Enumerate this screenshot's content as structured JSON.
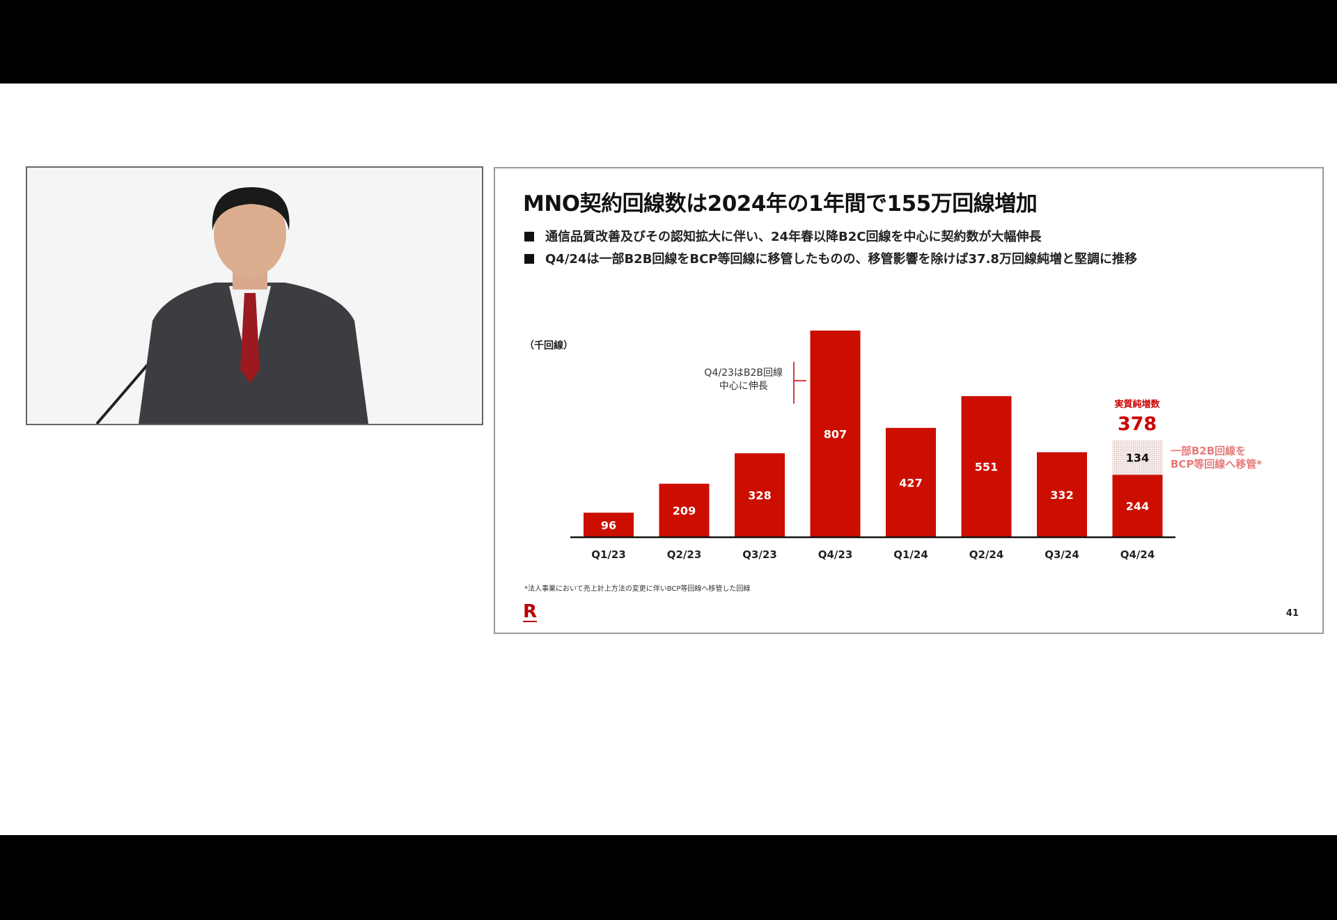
{
  "slide": {
    "title": "MNO契約回線数は2024年の1年間で155万回線増加",
    "bullets": [
      "通信品質改善及びその認知拡大に伴い、24年春以降B2C回線を中心に契約数が大幅伸長",
      "Q4/24は一部B2B回線をBCP等回線に移管したものの、移管影響を除けば37.8万回線純増と堅調に推移"
    ],
    "annotation_lines": [
      "Q4/23はB2B回線",
      "中心に伸長"
    ],
    "net_increase_label": "実質純増数",
    "net_increase_value": "378",
    "transfer_note_lines": [
      "一部B2B回線を",
      "BCP等回線へ移管*"
    ],
    "footnote": "*法人事業において売上計上方法の変更に伴いBCP等回線へ移管した回線",
    "logo": "R",
    "page_number": "41"
  },
  "chart_data": {
    "type": "bar",
    "ylabel": "（千回線）",
    "categories": [
      "Q1/23",
      "Q2/23",
      "Q3/23",
      "Q4/23",
      "Q1/24",
      "Q2/24",
      "Q3/24",
      "Q4/24"
    ],
    "values": [
      96,
      209,
      328,
      807,
      427,
      551,
      332,
      244
    ],
    "stacked_extra": {
      "category": "Q4/24",
      "value": 134
    },
    "ylim": [
      0,
      820
    ],
    "grid": false,
    "colors": {
      "bar": "#cc0e00",
      "extra": "#e9d6d6",
      "accent_text": "#cc0000",
      "note_text": "#e87a7a"
    }
  }
}
